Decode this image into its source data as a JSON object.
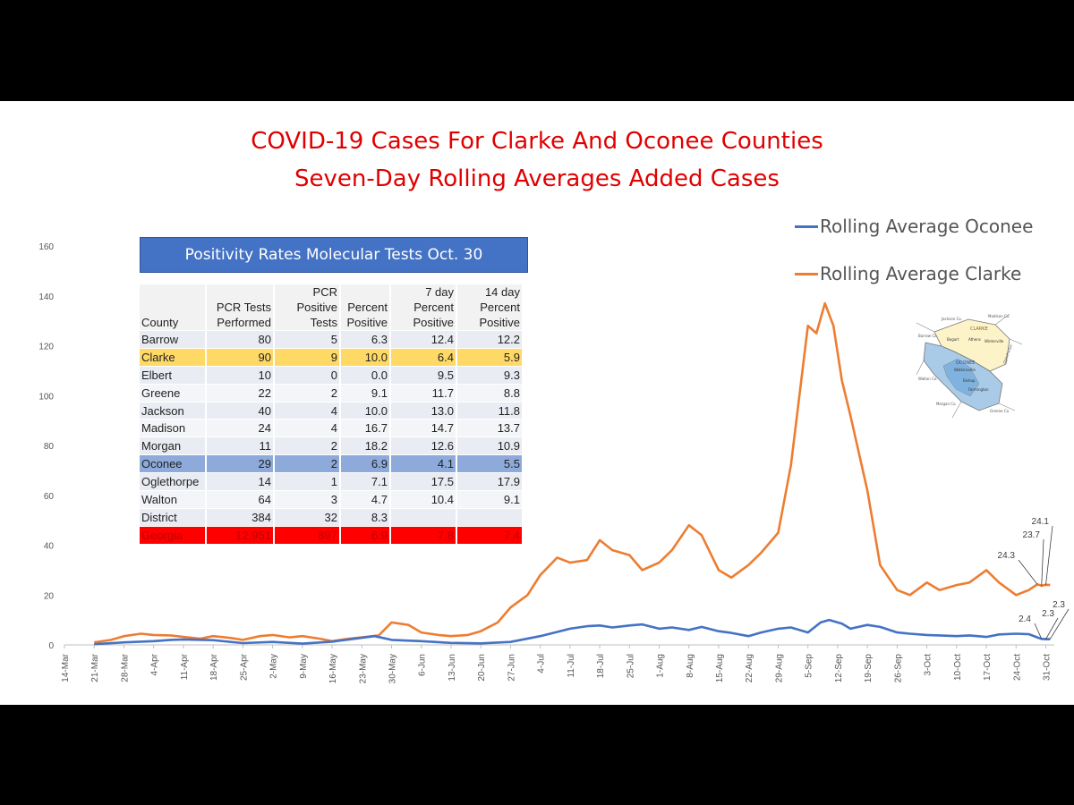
{
  "title_line1": "COVID-19 Cases For Clarke And Oconee Counties",
  "title_line2": "Seven-Day Rolling Averages Added Cases",
  "table": {
    "title": "Positivity Rates Molecular Tests Oct. 30",
    "headers": [
      "County",
      "PCR Tests Performed",
      "PCR Positive Tests",
      "Percent Positive",
      "7 day Percent Positive",
      "14 day Percent Positive"
    ],
    "rows": [
      [
        "Barrow",
        "80",
        "5",
        "6.3",
        "12.4",
        "12.2"
      ],
      [
        "Clarke",
        "90",
        "9",
        "10.0",
        "6.4",
        "5.9"
      ],
      [
        "Elbert",
        "10",
        "0",
        "0.0",
        "9.5",
        "9.3"
      ],
      [
        "Greene",
        "22",
        "2",
        "9.1",
        "11.7",
        "8.8"
      ],
      [
        "Jackson",
        "40",
        "4",
        "10.0",
        "13.0",
        "11.8"
      ],
      [
        "Madison",
        "24",
        "4",
        "16.7",
        "14.7",
        "13.7"
      ],
      [
        "Morgan",
        "11",
        "2",
        "18.2",
        "12.6",
        "10.9"
      ],
      [
        "Oconee",
        "29",
        "2",
        "6.9",
        "4.1",
        "5.5"
      ],
      [
        "Oglethorpe",
        "14",
        "1",
        "7.1",
        "17.5",
        "17.9"
      ],
      [
        "Walton",
        "64",
        "3",
        "4.7",
        "10.4",
        "9.1"
      ],
      [
        "District",
        "384",
        "32",
        "8.3",
        "",
        ""
      ],
      [
        "Georgia",
        "12,951",
        "897",
        "6.9",
        "7.8",
        "7.4"
      ]
    ]
  },
  "map_labels": [
    "Jackson Co.",
    "Madison Co.",
    "CLARKE",
    "Bogart",
    "Athens",
    "Winterville",
    "Barrow Co.",
    "OCONEE",
    "Watkinsville",
    "Oglethorpe",
    "Walton Co.",
    "Bishop",
    "Farmington",
    "Morgan Co.",
    "Greene Co."
  ],
  "chart_data": {
    "type": "line",
    "title": "COVID-19 Cases For Clarke And Oconee Counties\nSeven-Day Rolling Averages Added Cases",
    "xlabel": "",
    "ylabel": "",
    "ylim": [
      0,
      160
    ],
    "yticks": [
      0,
      20,
      40,
      60,
      80,
      100,
      120,
      140,
      160
    ],
    "x_start": "2020-03-14",
    "x_end": "2020-11-02",
    "xticks": [
      "14-Mar",
      "21-Mar",
      "28-Mar",
      "4-Apr",
      "11-Apr",
      "18-Apr",
      "25-Apr",
      "2-May",
      "9-May",
      "16-May",
      "23-May",
      "30-May",
      "6-Jun",
      "13-Jun",
      "20-Jun",
      "27-Jun",
      "4-Jul",
      "11-Jul",
      "18-Jul",
      "25-Jul",
      "1-Aug",
      "8-Aug",
      "15-Aug",
      "22-Aug",
      "29-Aug",
      "5-Sep",
      "12-Sep",
      "19-Sep",
      "26-Sep",
      "3-Oct",
      "10-Oct",
      "17-Oct",
      "24-Oct",
      "31-Oct"
    ],
    "grid": false,
    "legend_position": "top-right",
    "series": [
      {
        "name": "Rolling Average Oconee",
        "color": "#4472c4",
        "points": [
          [
            "2020-03-21",
            0.3
          ],
          [
            "2020-03-28",
            1.0
          ],
          [
            "2020-04-04",
            1.5
          ],
          [
            "2020-04-08",
            2.0
          ],
          [
            "2020-04-11",
            2.2
          ],
          [
            "2020-04-18",
            1.9
          ],
          [
            "2020-04-25",
            0.7
          ],
          [
            "2020-05-02",
            1.2
          ],
          [
            "2020-05-09",
            0.5
          ],
          [
            "2020-05-16",
            1.3
          ],
          [
            "2020-05-20",
            2.2
          ],
          [
            "2020-05-26",
            3.5
          ],
          [
            "2020-05-30",
            2.0
          ],
          [
            "2020-06-06",
            1.5
          ],
          [
            "2020-06-13",
            0.8
          ],
          [
            "2020-06-20",
            0.6
          ],
          [
            "2020-06-27",
            1.2
          ],
          [
            "2020-07-04",
            3.5
          ],
          [
            "2020-07-08",
            5.2
          ],
          [
            "2020-07-11",
            6.5
          ],
          [
            "2020-07-15",
            7.5
          ],
          [
            "2020-07-18",
            7.8
          ],
          [
            "2020-07-21",
            7.0
          ],
          [
            "2020-07-25",
            7.8
          ],
          [
            "2020-07-28",
            8.2
          ],
          [
            "2020-08-01",
            6.5
          ],
          [
            "2020-08-04",
            7.0
          ],
          [
            "2020-08-08",
            6.0
          ],
          [
            "2020-08-11",
            7.2
          ],
          [
            "2020-08-15",
            5.5
          ],
          [
            "2020-08-18",
            4.8
          ],
          [
            "2020-08-22",
            3.5
          ],
          [
            "2020-08-25",
            5.0
          ],
          [
            "2020-08-29",
            6.5
          ],
          [
            "2020-09-01",
            7.0
          ],
          [
            "2020-09-05",
            5.0
          ],
          [
            "2020-09-08",
            9.0
          ],
          [
            "2020-09-10",
            10.0
          ],
          [
            "2020-09-13",
            8.5
          ],
          [
            "2020-09-15",
            6.5
          ],
          [
            "2020-09-19",
            8.0
          ],
          [
            "2020-09-22",
            7.2
          ],
          [
            "2020-09-26",
            5.0
          ],
          [
            "2020-09-29",
            4.5
          ],
          [
            "2020-10-03",
            4.0
          ],
          [
            "2020-10-06",
            3.8
          ],
          [
            "2020-10-10",
            3.5
          ],
          [
            "2020-10-13",
            3.8
          ],
          [
            "2020-10-17",
            3.2
          ],
          [
            "2020-10-20",
            4.2
          ],
          [
            "2020-10-24",
            4.5
          ],
          [
            "2020-10-27",
            4.3
          ],
          [
            "2020-10-29",
            3.0
          ],
          [
            "2020-10-30",
            2.4
          ],
          [
            "2020-10-31",
            2.3
          ],
          [
            "2020-11-01",
            2.3
          ]
        ]
      },
      {
        "name": "Rolling Average Clarke",
        "color": "#ed7d31",
        "points": [
          [
            "2020-03-21",
            1.0
          ],
          [
            "2020-03-25",
            2.0
          ],
          [
            "2020-03-28",
            3.5
          ],
          [
            "2020-04-01",
            4.5
          ],
          [
            "2020-04-04",
            4.0
          ],
          [
            "2020-04-08",
            3.8
          ],
          [
            "2020-04-11",
            3.2
          ],
          [
            "2020-04-15",
            2.5
          ],
          [
            "2020-04-18",
            3.5
          ],
          [
            "2020-04-22",
            2.8
          ],
          [
            "2020-04-25",
            2.0
          ],
          [
            "2020-04-29",
            3.5
          ],
          [
            "2020-05-02",
            4.0
          ],
          [
            "2020-05-06",
            3.0
          ],
          [
            "2020-05-09",
            3.5
          ],
          [
            "2020-05-13",
            2.5
          ],
          [
            "2020-05-16",
            1.5
          ],
          [
            "2020-05-20",
            2.5
          ],
          [
            "2020-05-23",
            3.0
          ],
          [
            "2020-05-27",
            3.8
          ],
          [
            "2020-05-30",
            9.0
          ],
          [
            "2020-06-03",
            8.0
          ],
          [
            "2020-06-06",
            5.0
          ],
          [
            "2020-06-10",
            4.0
          ],
          [
            "2020-06-13",
            3.5
          ],
          [
            "2020-06-17",
            4.0
          ],
          [
            "2020-06-20",
            5.5
          ],
          [
            "2020-06-24",
            9.0
          ],
          [
            "2020-06-27",
            15.0
          ],
          [
            "2020-07-01",
            20.0
          ],
          [
            "2020-07-04",
            28.0
          ],
          [
            "2020-07-08",
            35.0
          ],
          [
            "2020-07-11",
            33.0
          ],
          [
            "2020-07-15",
            34.0
          ],
          [
            "2020-07-18",
            42.0
          ],
          [
            "2020-07-21",
            38.0
          ],
          [
            "2020-07-25",
            36.0
          ],
          [
            "2020-07-28",
            30.0
          ],
          [
            "2020-08-01",
            33.0
          ],
          [
            "2020-08-04",
            38.0
          ],
          [
            "2020-08-08",
            48.0
          ],
          [
            "2020-08-11",
            44.0
          ],
          [
            "2020-08-15",
            30.0
          ],
          [
            "2020-08-18",
            27.0
          ],
          [
            "2020-08-22",
            32.0
          ],
          [
            "2020-08-25",
            37.0
          ],
          [
            "2020-08-29",
            45.0
          ],
          [
            "2020-09-01",
            72.0
          ],
          [
            "2020-09-05",
            128.0
          ],
          [
            "2020-09-07",
            125.0
          ],
          [
            "2020-09-09",
            137.0
          ],
          [
            "2020-09-11",
            128.0
          ],
          [
            "2020-09-13",
            106.0
          ],
          [
            "2020-09-15",
            92.0
          ],
          [
            "2020-09-19",
            62.0
          ],
          [
            "2020-09-22",
            32.0
          ],
          [
            "2020-09-26",
            22.0
          ],
          [
            "2020-09-29",
            20.0
          ],
          [
            "2020-10-03",
            25.0
          ],
          [
            "2020-10-06",
            22.0
          ],
          [
            "2020-10-10",
            24.0
          ],
          [
            "2020-10-13",
            25.0
          ],
          [
            "2020-10-17",
            30.0
          ],
          [
            "2020-10-20",
            25.0
          ],
          [
            "2020-10-24",
            20.0
          ],
          [
            "2020-10-27",
            22.0
          ],
          [
            "2020-10-29",
            24.3
          ],
          [
            "2020-10-30",
            23.7
          ],
          [
            "2020-10-31",
            24.1
          ],
          [
            "2020-11-01",
            24.0
          ]
        ]
      }
    ],
    "annotations": [
      {
        "series": "Rolling Average Oconee",
        "date": "2020-10-30",
        "value": 2.4,
        "label": "2.4"
      },
      {
        "series": "Rolling Average Oconee",
        "date": "2020-10-31",
        "value": 2.3,
        "label": "2.3"
      },
      {
        "series": "Rolling Average Oconee",
        "date": "2020-11-01",
        "value": 2.3,
        "label": "2.3"
      },
      {
        "series": "Rolling Average Clarke",
        "date": "2020-10-29",
        "value": 24.3,
        "label": "24.3"
      },
      {
        "series": "Rolling Average Clarke",
        "date": "2020-10-30",
        "value": 23.7,
        "label": "23.7"
      },
      {
        "series": "Rolling Average Clarke",
        "date": "2020-10-31",
        "value": 24.1,
        "label": "24.1"
      }
    ]
  }
}
